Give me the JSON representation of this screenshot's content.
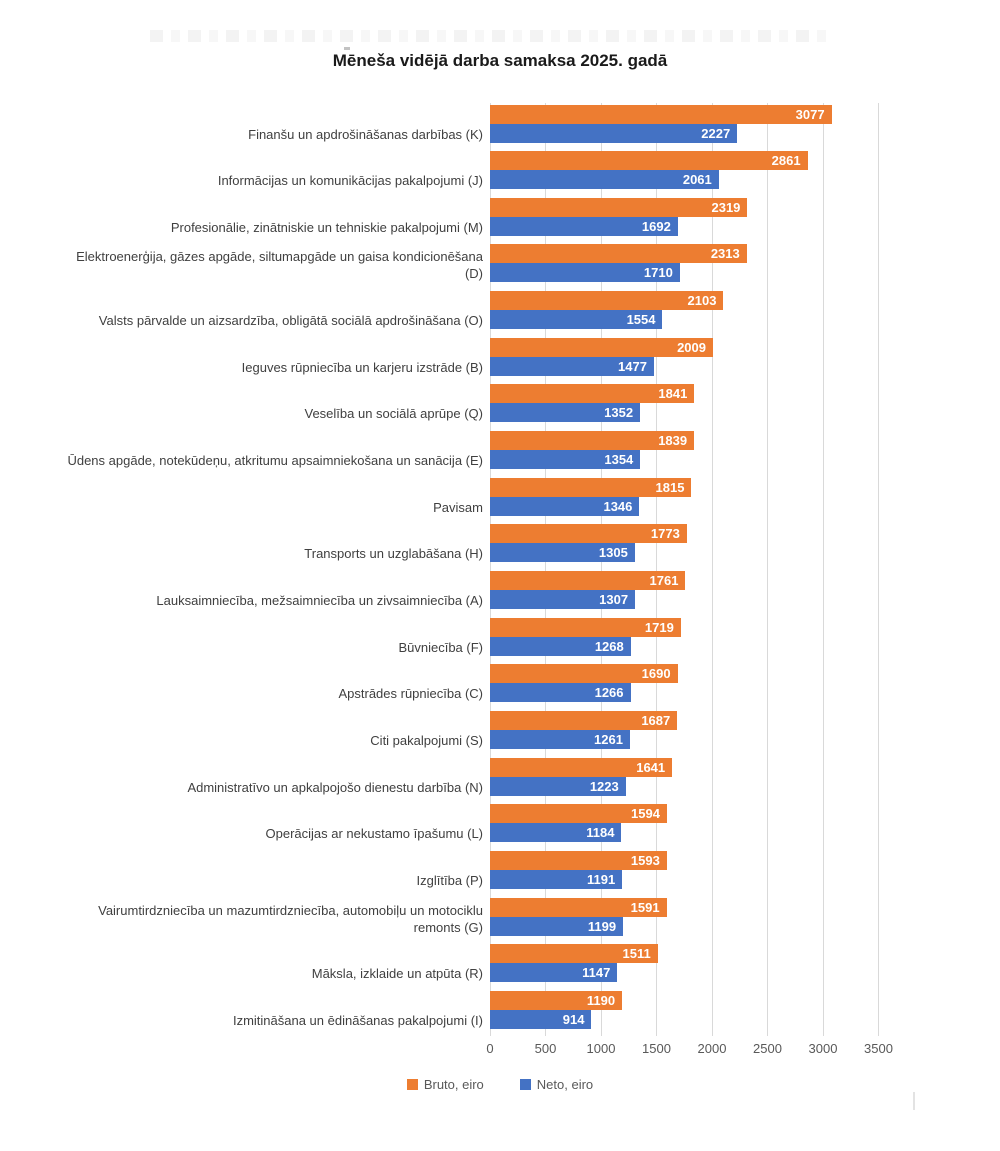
{
  "title": "Mēneša vidējā darba samaksa 2025. gadā",
  "chart_data": {
    "type": "bar",
    "orientation": "horizontal",
    "title": "Mēneša vidējā darba samaksa 2025. gadā",
    "categories": [
      "Finanšu un apdrošināšanas darbības (K)",
      "Informācijas un komunikācijas pakalpojumi (J)",
      "Profesionālie, zinātniskie un tehniskie pakalpojumi (M)",
      "Elektroenerģija, gāzes apgāde, siltumapgāde un gaisa kondicionēšana (D)",
      "Valsts pārvalde un aizsardzība, obligātā sociālā apdrošināšana (O)",
      "Ieguves rūpniecība un karjeru izstrāde (B)",
      "Veselība un sociālā aprūpe (Q)",
      "Ūdens apgāde, notekūdeņu, atkritumu apsaimniekošana un sanācija (E)",
      "Pavisam",
      "Transports un uzglabāšana (H)",
      "Lauksaimniecība, mežsaimniecība un zivsaimniecība (A)",
      "Būvniecība (F)",
      "Apstrādes rūpniecība (C)",
      "Citi pakalpojumi (S)",
      "Administratīvo un apkalpojošo dienestu darbība (N)",
      "Operācijas ar nekustamo īpašumu (L)",
      "Izglītība (P)",
      "Vairumtirdzniecība un mazumtirdzniecība, automobiļu un motociklu remonts (G)",
      "Māksla, izklaide un atpūta (R)",
      "Izmitināšana un ēdināšanas pakalpojumi (I)"
    ],
    "series": [
      {
        "name": "Bruto, eiro",
        "color": "#ED7D31",
        "values": [
          3077,
          2861,
          2319,
          2313,
          2103,
          2009,
          1841,
          1839,
          1815,
          1773,
          1761,
          1719,
          1690,
          1687,
          1641,
          1594,
          1593,
          1591,
          1511,
          1190
        ]
      },
      {
        "name": "Neto, eiro",
        "color": "#4472C4",
        "values": [
          2227,
          2061,
          1692,
          1710,
          1554,
          1477,
          1352,
          1354,
          1346,
          1305,
          1307,
          1268,
          1266,
          1261,
          1223,
          1184,
          1191,
          1199,
          1147,
          914
        ]
      }
    ],
    "xlim": [
      0,
      3500
    ],
    "x_ticks": [
      0,
      500,
      1000,
      1500,
      2000,
      2500,
      3000,
      3500
    ],
    "grid": true,
    "legend_position": "bottom",
    "value_labels": "inside-end-white-bold",
    "xlabel": "",
    "ylabel": ""
  },
  "colors": {
    "bruto": "#ED7D31",
    "neto": "#4472C4",
    "gridline": "#D9D9D9",
    "axis_text": "#595959",
    "category_text": "#404040",
    "title_text": "#1A1A1A"
  }
}
